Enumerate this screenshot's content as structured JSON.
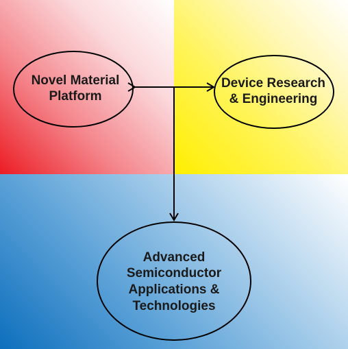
{
  "diagram": {
    "nodes": [
      {
        "id": "novel",
        "label": "Novel Material\nPlatform",
        "fill": "#ec1c24"
      },
      {
        "id": "device",
        "label": "Device Research\n& Engineering",
        "fill": "#ffee00"
      },
      {
        "id": "advanced",
        "label": "Advanced\nSemiconductor\nApplications &\nTechnologies",
        "fill": "#0d6fbd"
      }
    ],
    "edges": [
      {
        "from": "novel",
        "to": "device",
        "bidirectional": true
      },
      {
        "from": "novel",
        "to": "advanced",
        "bidirectional": false
      }
    ],
    "colors": {
      "red": "#ec1c24",
      "yellow": "#ffee00",
      "blue": "#0d6fbd",
      "stroke": "#000000"
    }
  }
}
